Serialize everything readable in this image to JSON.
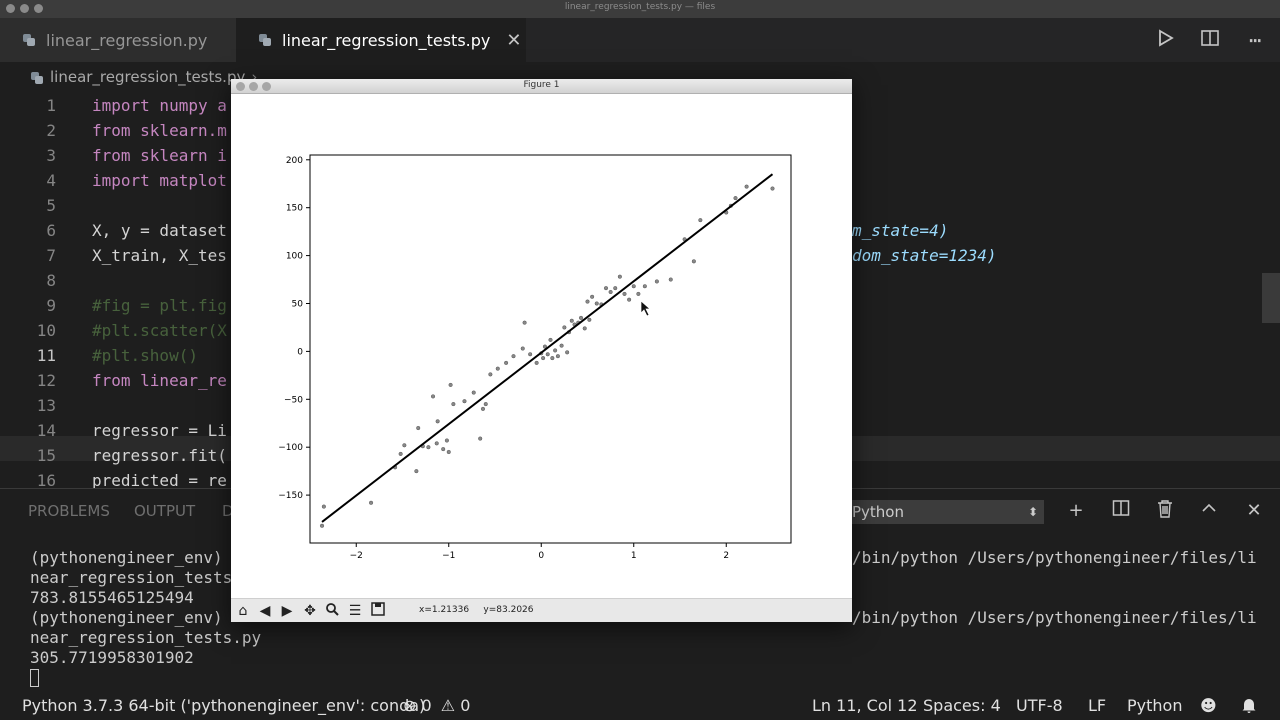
{
  "window": {
    "title": "linear_regression_tests.py — files"
  },
  "tabs": [
    {
      "label": "linear_regression.py",
      "active": false
    },
    {
      "label": "linear_regression_tests.py",
      "active": true
    }
  ],
  "breadcrumb": "linear_regression_tests.py",
  "editor": {
    "current_line": 11,
    "lines": [
      {
        "n": "1",
        "text": "import numpy a"
      },
      {
        "n": "2",
        "text": "from sklearn.m"
      },
      {
        "n": "3",
        "text": "from sklearn i"
      },
      {
        "n": "4",
        "text": "import matplot"
      },
      {
        "n": "5",
        "text": ""
      },
      {
        "n": "6",
        "text": "X, y = dataset",
        "tail": "m_state=4)"
      },
      {
        "n": "7",
        "text": "X_train, X_tes",
        "tail": "dom_state=1234)"
      },
      {
        "n": "8",
        "text": ""
      },
      {
        "n": "9",
        "text": "#fig = plt.fig"
      },
      {
        "n": "10",
        "text": "#plt.scatter(X"
      },
      {
        "n": "11",
        "text": "#plt.show()"
      },
      {
        "n": "12",
        "text": "from linear_re"
      },
      {
        "n": "13",
        "text": ""
      },
      {
        "n": "14",
        "text": "regressor = Li"
      },
      {
        "n": "15",
        "text": "regressor.fit("
      },
      {
        "n": "16",
        "text": "predicted = re"
      }
    ]
  },
  "panel": {
    "tabs": [
      "PROBLEMS",
      "OUTPUT",
      "D"
    ],
    "terminal_select": "Python",
    "terminal_lines": [
      "(pythonengineer_env) ",
      "near_regression_tests.",
      "783.8155465125494",
      "(pythonengineer_env) ",
      "near_regression_tests.py",
      "305.7719958301902"
    ],
    "terminal_right": [
      "/bin/python /Users/pythonengineer/files/li",
      "/bin/python /Users/pythonengineer/files/li"
    ]
  },
  "statusbar": {
    "interpreter": "Python 3.7.3 64-bit ('pythonengineer_env': conda)",
    "errors": "0",
    "warnings": "0",
    "position": "Ln 11, Col 12",
    "spaces": "Spaces: 4",
    "encoding": "UTF-8",
    "eol": "LF",
    "language": "Python"
  },
  "figure": {
    "title": "Figure 1",
    "coord_x": "x=1.21336",
    "coord_y": "y=83.2026"
  },
  "icons": {
    "run": "run-icon",
    "split": "split-editor-icon",
    "more": "more-icon"
  },
  "chart_data": {
    "type": "scatter",
    "title": "",
    "xlabel": "",
    "ylabel": "",
    "xlim": [
      -2.5,
      2.7
    ],
    "ylim": [
      -200,
      205
    ],
    "xticks": [
      -2,
      -1,
      0,
      1,
      2
    ],
    "yticks": [
      -150,
      -100,
      -50,
      0,
      50,
      100,
      150,
      200
    ],
    "grid": false,
    "series": [
      {
        "kind": "points",
        "x": [
          -2.37,
          -2.35,
          -1.84,
          -1.58,
          -1.52,
          -1.48,
          -1.35,
          -1.33,
          -1.28,
          -1.22,
          -1.17,
          -1.13,
          -1.12,
          -1.06,
          -1.02,
          -1.0,
          -0.98,
          -0.95,
          -0.83,
          -0.73,
          -0.66,
          -0.63,
          -0.6,
          -0.55,
          -0.47,
          -0.38,
          -0.3,
          -0.2,
          -0.18,
          -0.12,
          -0.05,
          0.0,
          0.02,
          0.04,
          0.07,
          0.1,
          0.12,
          0.15,
          0.18,
          0.22,
          0.25,
          0.28,
          0.3,
          0.33,
          0.36,
          0.4,
          0.43,
          0.47,
          0.5,
          0.52,
          0.55,
          0.6,
          0.65,
          0.7,
          0.75,
          0.8,
          0.85,
          0.9,
          0.95,
          1.0,
          1.05,
          1.12,
          1.25,
          1.4,
          1.55,
          1.65,
          1.72,
          2.0,
          2.05,
          2.1,
          2.22,
          2.5
        ],
        "y": [
          -182,
          -162,
          -158,
          -121,
          -107,
          -98,
          -125,
          -80,
          -99,
          -100,
          -47,
          -96,
          -73,
          -102,
          -93,
          -105,
          -35,
          -55,
          -52,
          -43,
          -91,
          -60,
          -55,
          -24,
          -18,
          -12,
          -5,
          3,
          30,
          -3,
          -12,
          -2,
          -7,
          5,
          -3,
          12,
          -7,
          1,
          -5,
          6,
          25,
          -1,
          20,
          32,
          28,
          30,
          35,
          24,
          52,
          33,
          57,
          50,
          49,
          66,
          62,
          66,
          78,
          60,
          54,
          68,
          60,
          68,
          73,
          75,
          117,
          94,
          137,
          145,
          152,
          160,
          172,
          170
        ]
      },
      {
        "kind": "line",
        "name": "",
        "x": [
          -2.37,
          2.5
        ],
        "y": [
          -178,
          185
        ]
      }
    ]
  }
}
